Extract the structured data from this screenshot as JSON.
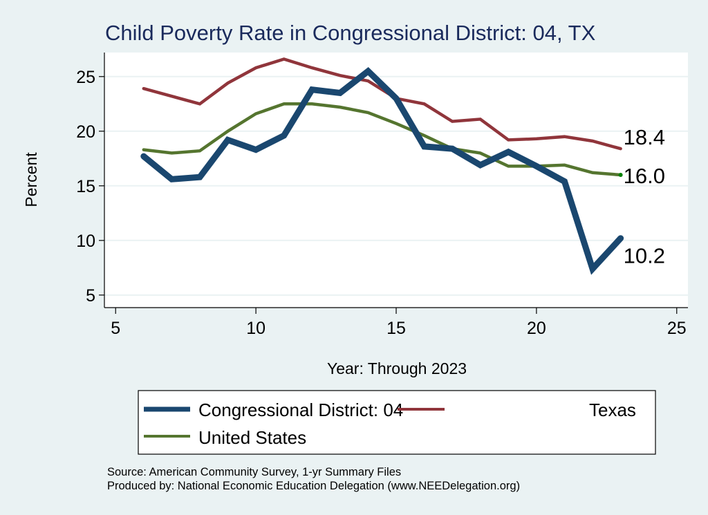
{
  "chart_data": {
    "type": "line",
    "title": "Child Poverty Rate in Congressional District:  04, TX",
    "xlabel": "Year: Through 2023",
    "ylabel": "Percent",
    "xlim": [
      4.6,
      25.4
    ],
    "ylim": [
      3.85,
      27.2
    ],
    "xticks": [
      5,
      10,
      15,
      20,
      25
    ],
    "yticks": [
      5,
      10,
      15,
      20,
      25
    ],
    "grid": "horizontal",
    "x": [
      6,
      7,
      8,
      9,
      10,
      11,
      12,
      13,
      14,
      15,
      16,
      17,
      18,
      19,
      20,
      21,
      22,
      23
    ],
    "series": [
      {
        "name": "Congressional District:  04",
        "color": "#1a476f",
        "values": [
          17.7,
          15.6,
          15.8,
          19.2,
          18.3,
          19.6,
          23.8,
          23.5,
          25.5,
          23.0,
          18.6,
          18.4,
          16.9,
          18.1,
          16.8,
          15.4,
          7.4,
          10.2
        ],
        "end_label": "10.2"
      },
      {
        "name": "Texas",
        "color": "#90353b",
        "values": [
          23.9,
          23.2,
          22.5,
          24.4,
          25.8,
          26.6,
          25.8,
          25.1,
          24.6,
          23.0,
          22.5,
          20.9,
          21.1,
          19.2,
          19.3,
          19.5,
          19.1,
          18.4
        ],
        "end_label": "18.4"
      },
      {
        "name": "United States",
        "color": "#55752f",
        "values": [
          18.3,
          18.0,
          18.2,
          20.0,
          21.6,
          22.5,
          22.5,
          22.2,
          21.7,
          20.7,
          19.6,
          18.4,
          18.0,
          16.8,
          16.8,
          16.9,
          16.2,
          16.0
        ],
        "end_label": "16.0"
      }
    ],
    "legend": {
      "placement": "bottom",
      "entries": [
        "Congressional District:  04",
        "Texas",
        "United States"
      ]
    },
    "notes": [
      "Source: American Community Survey, 1-yr Summary Files",
      "Produced by: National Economic Education Delegation (www.NEEDelegation.org)"
    ]
  }
}
